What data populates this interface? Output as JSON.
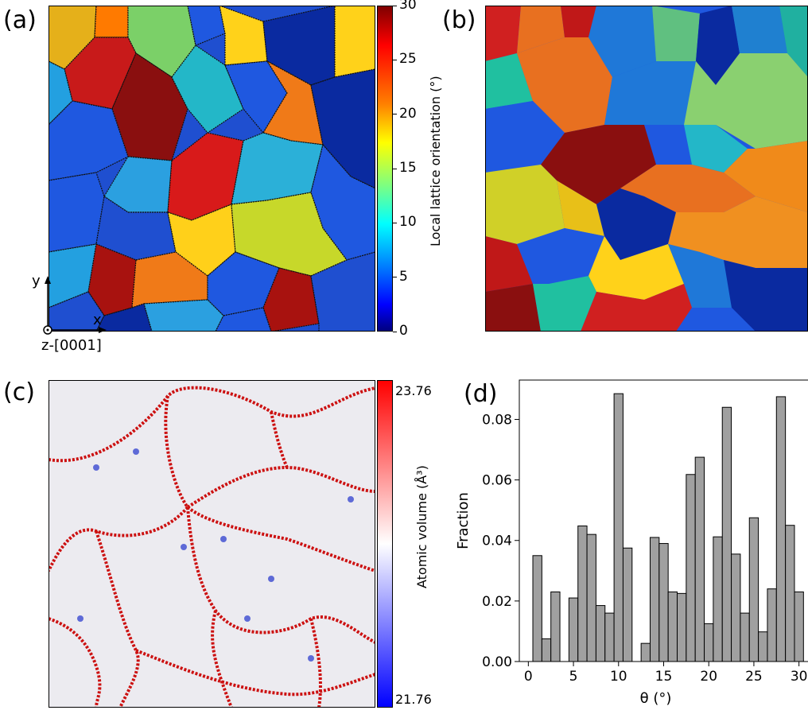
{
  "panels": {
    "a": {
      "label": "(a)",
      "colorbar": {
        "title": "Local lattice orientation (°)",
        "ticks": [
          "30",
          "25",
          "20",
          "15",
          "10",
          "5",
          "0"
        ]
      },
      "axes": {
        "y": "y",
        "x": "x",
        "z": "z-[0001]"
      }
    },
    "b": {
      "label": "(b)"
    },
    "c": {
      "label": "(c)",
      "colorbar": {
        "title": "Atomic volume (Å³)",
        "max": "23.76",
        "min": "21.76"
      }
    },
    "d": {
      "label": "(d)"
    }
  },
  "chart_data": {
    "type": "bar",
    "xlabel": "θ (°)",
    "ylabel": "Fraction",
    "xlim": [
      -1,
      31
    ],
    "ylim": [
      0,
      0.093
    ],
    "xticks": [
      0,
      5,
      10,
      15,
      20,
      25,
      30
    ],
    "xtick_labels": [
      "0",
      "5",
      "10",
      "15",
      "20",
      "25",
      "30"
    ],
    "yticks": [
      0,
      0.02,
      0.04,
      0.06,
      0.08
    ],
    "ytick_labels": [
      "0.00",
      "0.02",
      "0.04",
      "0.06",
      "0.08"
    ],
    "bin_width": 1,
    "bin_centers": [
      1,
      2,
      3,
      4,
      5,
      6,
      7,
      8,
      9,
      10,
      11,
      12,
      13,
      14,
      15,
      16,
      17,
      18,
      19,
      20,
      21,
      22,
      23,
      24,
      25,
      26,
      27,
      28,
      29,
      30
    ],
    "values": [
      0.035,
      0.0075,
      0.023,
      0,
      0.021,
      0.0448,
      0.042,
      0.0185,
      0.016,
      0.0885,
      0.0375,
      0,
      0.006,
      0.041,
      0.039,
      0.023,
      0.0225,
      0.0618,
      0.0675,
      0.0125,
      0.0412,
      0.084,
      0.0355,
      0.016,
      0.0475,
      0.0098,
      0.024,
      0.0875,
      0.045,
      0.023
    ],
    "bar_color": "#a0a0a0"
  }
}
